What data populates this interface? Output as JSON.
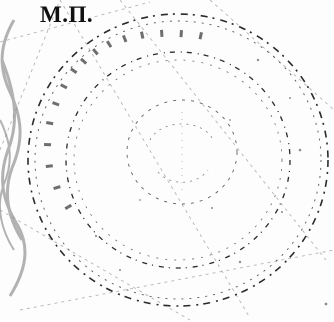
{
  "document": {
    "stamp_place_label": "М.П."
  },
  "seal": {
    "description_icon": "round-seal-stamp",
    "ink_color": "#2a2a2a",
    "ring_text_fragments": [
      "СФЕР",
      "ЫЕ"
    ]
  },
  "colors": {
    "background": "#fdfdfd",
    "ink": "#111111",
    "wave": "#8a8a8a"
  }
}
